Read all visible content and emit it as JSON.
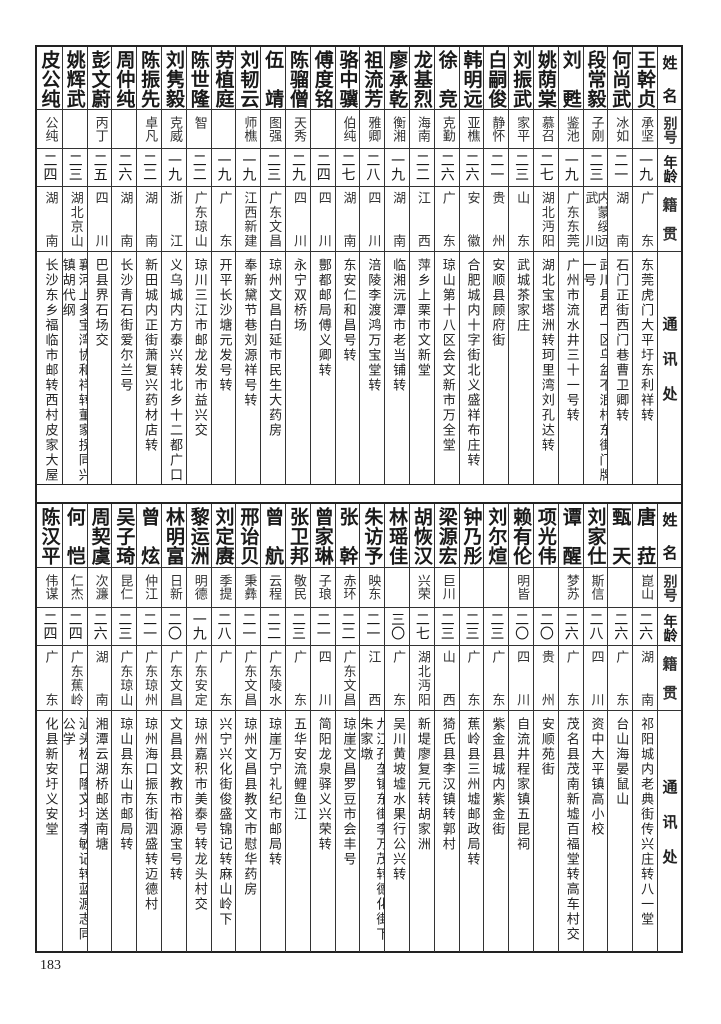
{
  "upper_table": {
    "headers": {
      "name": "姓名",
      "alias": "别号",
      "age": "年龄",
      "native": "籍贯",
      "addr": "通讯处"
    },
    "rows": [
      {
        "name": "王幹贞",
        "alias": "承坚",
        "age": "一九",
        "native": "广东",
        "addr": "东莞虎门大平圩东利祥转"
      },
      {
        "name": "何尚武",
        "alias": "冰如",
        "age": "二一",
        "native": "湖南",
        "addr": "石门正街西门巷曹卫卿转"
      },
      {
        "name": "段常毅",
        "alias": "子刚",
        "age": "二三",
        "native": "内蒙绥远武川",
        "addr": "武川县西一区乌盆不浪村东街门牌一号"
      },
      {
        "name": "刘甦",
        "alias": "鉴池",
        "age": "一九",
        "native": "广东东莞",
        "addr": "广州市流水井三十一号转"
      },
      {
        "name": "姚荫棠",
        "alias": "慕召",
        "age": "二七",
        "native": "湖北沔阳",
        "addr": "湖北宝塔洲转珂里湾刘孔达转"
      },
      {
        "name": "刘振武",
        "alias": "家平",
        "age": "二三",
        "native": "山东",
        "addr": "武城茶家庄"
      },
      {
        "name": "白嗣俊",
        "alias": "静怀",
        "age": "二一",
        "native": "贵州",
        "addr": "安顺县顾府街"
      },
      {
        "name": "韩明远",
        "alias": "亚樵",
        "age": "二六",
        "native": "安徽",
        "addr": "合肥城内十字街北义盛祥布庄转"
      },
      {
        "name": "徐竞",
        "alias": "克勤",
        "age": "二六",
        "native": "广东",
        "addr": "琼山第十八区会文新市万全堂"
      },
      {
        "name": "龙基烈",
        "alias": "海南",
        "age": "二二",
        "native": "江西",
        "addr": "萍乡上栗市文新堂"
      },
      {
        "name": "廖承乾",
        "alias": "衡湘",
        "age": "一九",
        "native": "湖南",
        "addr": "临湘沅潭市老当铺转"
      },
      {
        "name": "祖流芳",
        "alias": "雅卿",
        "age": "二八",
        "native": "四川",
        "addr": "涪陵李渡鸿万宝堂转"
      },
      {
        "name": "骆中骥",
        "alias": "伯纯",
        "age": "二七",
        "native": "湖南",
        "addr": "东安仁和昌号转"
      },
      {
        "name": "傅度铭",
        "alias": "",
        "age": "二四",
        "native": "四川",
        "addr": "酆都邮局傅义卿转"
      },
      {
        "name": "陈骝僧",
        "alias": "天秀",
        "age": "二九",
        "native": "四川",
        "addr": "永宁双桥场"
      },
      {
        "name": "伍靖",
        "alias": "图强",
        "age": "二三",
        "native": "广东文昌",
        "addr": "琼州文昌白延市民生大药房"
      },
      {
        "name": "刘韧云",
        "alias": "师樵",
        "age": "一九",
        "native": "江西新建",
        "addr": "奉新黛节巷刘源祥号转"
      },
      {
        "name": "劳植庭",
        "alias": "",
        "age": "一九",
        "native": "广东",
        "addr": "开平长沙塘元发号转"
      },
      {
        "name": "陈世隆",
        "alias": "智",
        "age": "二二",
        "native": "广东琼山",
        "addr": "琼川三江市邮龙发市益兴交"
      },
      {
        "name": "刘隽毅",
        "alias": "克威",
        "age": "一九",
        "native": "浙江",
        "addr": "义乌城内方泰兴转北乡十二都广口"
      },
      {
        "name": "陈振先",
        "alias": "卓凡",
        "age": "二二",
        "native": "湖南",
        "addr": "新田城内正街萧复兴药材店转"
      },
      {
        "name": "周仲纯",
        "alias": "",
        "age": "二六",
        "native": "湖南",
        "addr": "长沙青石街爱尔兰号"
      },
      {
        "name": "彭文蔚",
        "alias": "丙丁",
        "age": "二五",
        "native": "四川",
        "addr": "巴县界石场交"
      },
      {
        "name": "姚辉武",
        "alias": "",
        "age": "二三",
        "native": "湖北京山",
        "addr": "襄河上多宝湾协和祥转董家拐同兴镇胡代纲"
      },
      {
        "name": "皮公纯",
        "alias": "公纯",
        "age": "二四",
        "native": "湖南",
        "addr": "长沙东乡福临市邮转西村皮家大屋"
      }
    ]
  },
  "lower_table": {
    "headers": {
      "name": "姓名",
      "alias": "别号",
      "age": "年龄",
      "native": "籍贯",
      "addr": "通讯处"
    },
    "rows": [
      {
        "name": "唐菈",
        "alias": "崑山",
        "age": "二六",
        "native": "湖南",
        "addr": "祁阳城内老典街传兴庄转八一堂"
      },
      {
        "name": "甄天",
        "alias": "",
        "age": "二六",
        "native": "广东",
        "addr": "台山海晏鼠山"
      },
      {
        "name": "刘家仕",
        "alias": "斯信",
        "age": "二八",
        "native": "四川",
        "addr": "资中大平镇高小校"
      },
      {
        "name": "谭醒",
        "alias": "梦苏",
        "age": "二六",
        "native": "广东",
        "addr": "茂名县茂南新墟百福堂转高车村交"
      },
      {
        "name": "项光伟",
        "alias": "",
        "age": "二〇",
        "native": "贵州",
        "addr": "安顺苑街"
      },
      {
        "name": "赖有伦",
        "alias": "明皆",
        "age": "二〇",
        "native": "四川",
        "addr": "自流井程家镇五昆祠"
      },
      {
        "name": "刘尔煊",
        "alias": "",
        "age": "二三",
        "native": "广东",
        "addr": "紫金县城内紫金街"
      },
      {
        "name": "钟乃彤",
        "alias": "",
        "age": "二三",
        "native": "广东",
        "addr": "蕉岭县三州墟邮政局转"
      },
      {
        "name": "梁源宏",
        "alias": "巨川",
        "age": "二三",
        "native": "山西",
        "addr": "猗氏县李汉镇转郭村"
      },
      {
        "name": "胡恢汉",
        "alias": "兴荣",
        "age": "二七",
        "native": "湖北沔阳",
        "addr": "新堤廖复元转胡家洲"
      },
      {
        "name": "林瑶佳",
        "alias": "",
        "age": "三〇",
        "native": "广东",
        "addr": "吴川黄坡墟水果行公兴转"
      },
      {
        "name": "朱访予",
        "alias": "映东",
        "age": "二一",
        "native": "江西",
        "addr": "九江孔垄镇东街李万茂转德化街下朱家墩"
      },
      {
        "name": "张幹",
        "alias": "赤环",
        "age": "二二",
        "native": "广东文昌",
        "addr": "琼崖文昌罗豆市会丰号"
      },
      {
        "name": "曾家琳",
        "alias": "子琅",
        "age": "二一",
        "native": "四川",
        "addr": "简阳龙泉驿义兴荣转"
      },
      {
        "name": "张卫邦",
        "alias": "敬民",
        "age": "二三",
        "native": "广东",
        "addr": "五华安流鲤鱼江"
      },
      {
        "name": "曾航",
        "alias": "云程",
        "age": "二二",
        "native": "广东陵水",
        "addr": "琼崖万宁礼纪市邮局转"
      },
      {
        "name": "邢诒贝",
        "alias": "秉彝",
        "age": "二一",
        "native": "广东文昌",
        "addr": "琼州文昌县教文市慰华药房"
      },
      {
        "name": "刘定赓",
        "alias": "季提",
        "age": "二八",
        "native": "广东",
        "addr": "兴宁兴化街俊盛锦记转麻山岭下"
      },
      {
        "name": "黎运洲",
        "alias": "明德",
        "age": "一九",
        "native": "广东安定",
        "addr": "琼州嘉积市美泰号转龙头村交"
      },
      {
        "name": "林明富",
        "alias": "日新",
        "age": "二〇",
        "native": "广东文昌",
        "addr": "文昌县文教市裕源宝号转"
      },
      {
        "name": "曾炫",
        "alias": "仲江",
        "age": "二一",
        "native": "广东琼州",
        "addr": "琼州海口振东街泗盛转迈德村"
      },
      {
        "name": "吴子琦",
        "alias": "昆仁",
        "age": "二三",
        "native": "广东琼山",
        "addr": "琼山县东山市邮局转"
      },
      {
        "name": "周契虞",
        "alias": "次濂",
        "age": "二六",
        "native": "湖南",
        "addr": "湘潭云湖桥邮送南塘"
      },
      {
        "name": "何恺",
        "alias": "仁杰",
        "age": "二四",
        "native": "广东蕉岭",
        "addr": "汕头松口隆文圩李敏记转蓝源志同公学"
      },
      {
        "name": "陈汉平",
        "alias": "伟谋",
        "age": "二四",
        "native": "广东",
        "addr": "化县新安圩义安堂"
      }
    ]
  },
  "page_number": "183"
}
